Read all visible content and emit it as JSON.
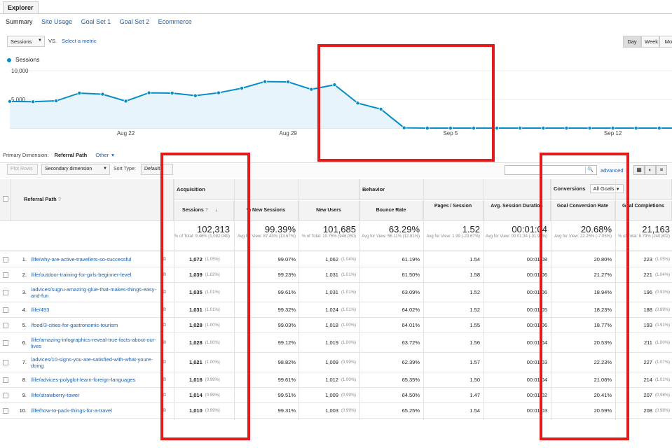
{
  "header": {
    "tab": "Explorer",
    "subtabs": [
      "Summary",
      "Site Usage",
      "Goal Set 1",
      "Goal Set 2",
      "Ecommerce"
    ]
  },
  "chart_controls": {
    "metric": "Sessions",
    "vs": "VS.",
    "select_metric": "Select a metric",
    "ranges": [
      "Day",
      "Week",
      "Mo"
    ]
  },
  "chart_data": {
    "type": "area",
    "series": [
      {
        "name": "Sessions",
        "values": [
          4650,
          4600,
          4750,
          6100,
          5900,
          4700,
          6150,
          6100,
          5650,
          6150,
          6950,
          8100,
          8050,
          6750,
          7550,
          4350,
          3300,
          50,
          0,
          0,
          0,
          0,
          0,
          0,
          0,
          0,
          0,
          0,
          0
        ]
      }
    ],
    "x_tick_labels": [
      "Aug 22",
      "Aug 29",
      "Sep 5",
      "Sep 12"
    ],
    "y_tick_labels": [
      "10,000",
      "5,000"
    ],
    "ylim": [
      0,
      10000
    ],
    "color": "#058dc7"
  },
  "dimension": {
    "label": "Primary Dimension:",
    "value": "Referral Path",
    "other": "Other"
  },
  "toolbar": {
    "plot_rows": "Plot Rows",
    "secondary": "Secondary dimension",
    "sort_type": "Sort Type:",
    "sort_value": "Default",
    "advanced": "advanced"
  },
  "table": {
    "groups": {
      "acquisition": "Acquisition",
      "behavior": "Behavior",
      "conversions": "Conversions",
      "all_goals": "All Goals"
    },
    "columns": {
      "ref": "Referral Path",
      "sessions": "Sessions",
      "new_sessions": "% New Sessions",
      "new_users": "New Users",
      "bounce": "Bounce Rate",
      "pages": "Pages / Session",
      "duration": "Avg. Session Duration",
      "gcr": "Goal Conversion Rate",
      "gc": "Goal Completions"
    },
    "totals": {
      "sessions": "102,313",
      "sessions_sub": "% of Total: 9.46% (1,082,049)",
      "new_sessions": "99.39%",
      "new_sessions_sub": "Avg for View: 87.43% (13.67%)",
      "new_users": "101,685",
      "new_users_sub": "% of Total: 10.75% (946,050)",
      "bounce": "63.29%",
      "bounce_sub": "Avg for View: 56.11% (12.81%)",
      "pages": "1.52",
      "pages_sub": "Avg for View: 1.99 (-23.67%)",
      "duration": "00:01:04",
      "duration_sub": "Avg for View: 00:01:34 (-31.98%)",
      "gcr": "20.68%",
      "gcr_sub": "Avg for View: 22.25% (-7.05%)",
      "gc": "21,163",
      "gc_sub": "% of Total: 8.79% (240,802)"
    },
    "rows": [
      {
        "n": "1.",
        "path": "/life/why-are-active-travellers-so-successful",
        "sessions": "1,072",
        "s_pct": "(1.05%)",
        "new_s": "99.07%",
        "users": "1,062",
        "u_pct": "(1.04%)",
        "bounce": "61.19%",
        "pages": "1.54",
        "dur": "00:01:08",
        "gcr": "20.80%",
        "gc": "223",
        "gc_pct": "(1.05%)"
      },
      {
        "n": "2.",
        "path": "/life/outdoor-training-for-girls-beginner-level",
        "sessions": "1,039",
        "s_pct": "(1.02%)",
        "new_s": "99.23%",
        "users": "1,031",
        "u_pct": "(1.01%)",
        "bounce": "61.50%",
        "pages": "1.58",
        "dur": "00:01:06",
        "gcr": "21.27%",
        "gc": "221",
        "gc_pct": "(1.04%)"
      },
      {
        "n": "3.",
        "path": "/advices/sugru-amazing-glue-that-makes-things-easy-and-fun",
        "sessions": "1,035",
        "s_pct": "(1.01%)",
        "new_s": "99.61%",
        "users": "1,031",
        "u_pct": "(1.01%)",
        "bounce": "63.09%",
        "pages": "1.52",
        "dur": "00:01:06",
        "gcr": "18.94%",
        "gc": "196",
        "gc_pct": "(0.93%)"
      },
      {
        "n": "4.",
        "path": "/life/493",
        "sessions": "1,031",
        "s_pct": "(1.01%)",
        "new_s": "99.32%",
        "users": "1,024",
        "u_pct": "(1.01%)",
        "bounce": "64.02%",
        "pages": "1.52",
        "dur": "00:01:05",
        "gcr": "18.23%",
        "gc": "188",
        "gc_pct": "(0.89%)"
      },
      {
        "n": "5.",
        "path": "/food/3-cities-for-gastronomic-tourism",
        "sessions": "1,028",
        "s_pct": "(1.00%)",
        "new_s": "99.03%",
        "users": "1,018",
        "u_pct": "(1.00%)",
        "bounce": "64.01%",
        "pages": "1.55",
        "dur": "00:01:06",
        "gcr": "18.77%",
        "gc": "193",
        "gc_pct": "(0.91%)"
      },
      {
        "n": "6.",
        "path": "/life/amazing-infographics-reveal-true-facts-about-our-lives",
        "sessions": "1,028",
        "s_pct": "(1.00%)",
        "new_s": "99.12%",
        "users": "1,019",
        "u_pct": "(1.00%)",
        "bounce": "63.72%",
        "pages": "1.56",
        "dur": "00:01:04",
        "gcr": "20.53%",
        "gc": "211",
        "gc_pct": "(1.00%)"
      },
      {
        "n": "7.",
        "path": "/advices/10-signs-you-are-satisfied-with-what-youre-doing",
        "sessions": "1,021",
        "s_pct": "(1.00%)",
        "new_s": "98.82%",
        "users": "1,009",
        "u_pct": "(0.99%)",
        "bounce": "62.39%",
        "pages": "1.57",
        "dur": "00:01:03",
        "gcr": "22.23%",
        "gc": "227",
        "gc_pct": "(1.07%)"
      },
      {
        "n": "8.",
        "path": "/life/advices-polyglot-learn-foreign-languages",
        "sessions": "1,016",
        "s_pct": "(0.99%)",
        "new_s": "99.61%",
        "users": "1,012",
        "u_pct": "(1.00%)",
        "bounce": "65.35%",
        "pages": "1.50",
        "dur": "00:01:04",
        "gcr": "21.06%",
        "gc": "214",
        "gc_pct": "(1.01%)"
      },
      {
        "n": "9.",
        "path": "/life/strawberry-tower",
        "sessions": "1,014",
        "s_pct": "(0.99%)",
        "new_s": "99.51%",
        "users": "1,009",
        "u_pct": "(0.99%)",
        "bounce": "64.50%",
        "pages": "1.47",
        "dur": "00:01:02",
        "gcr": "20.41%",
        "gc": "207",
        "gc_pct": "(0.98%)"
      },
      {
        "n": "10.",
        "path": "/life/how-to-pack-things-for-a-travel",
        "sessions": "1,010",
        "s_pct": "(0.99%)",
        "new_s": "99.31%",
        "users": "1,003",
        "u_pct": "(0.99%)",
        "bounce": "65.25%",
        "pages": "1.54",
        "dur": "00:01:03",
        "gcr": "20.59%",
        "gc": "208",
        "gc_pct": "(0.98%)"
      }
    ]
  },
  "highlight_color": "#e21b1b"
}
